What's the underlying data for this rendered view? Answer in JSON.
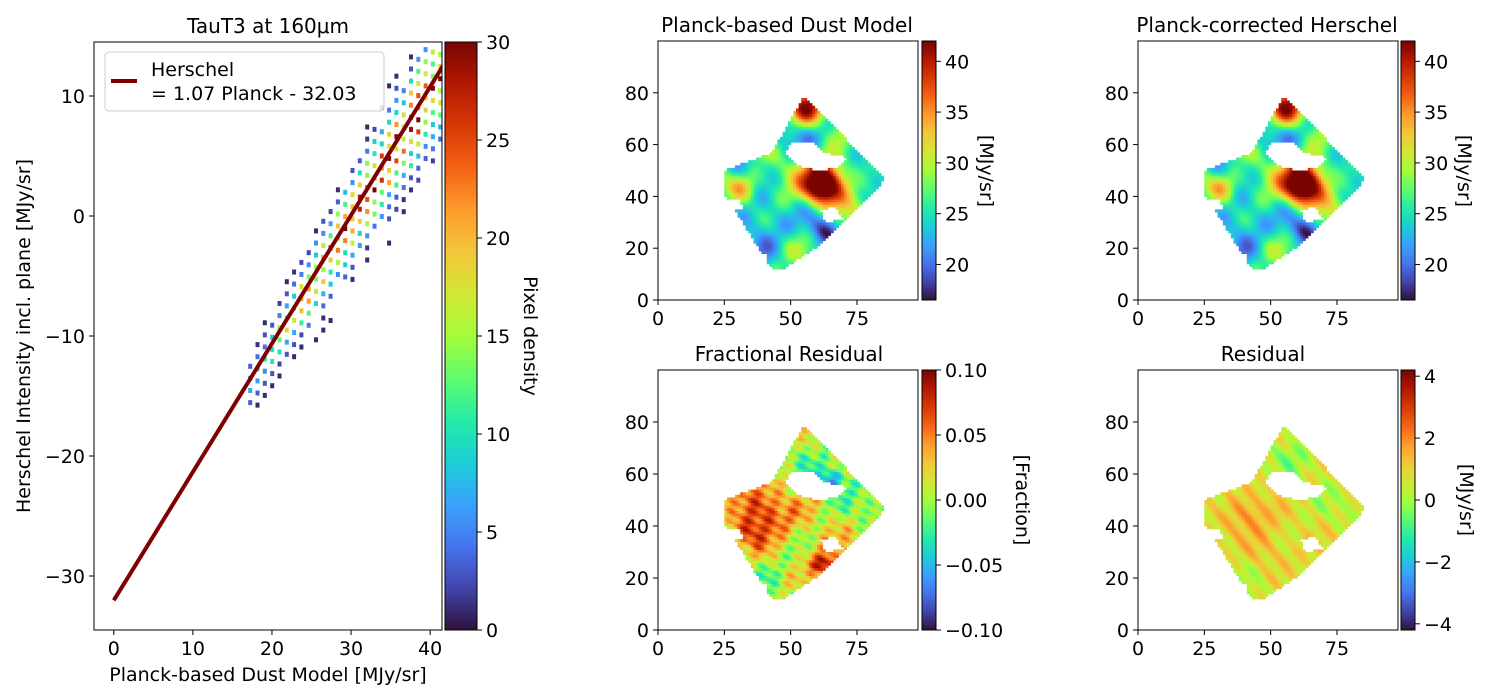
{
  "colors": {
    "turbo_stops": [
      "#30123b",
      "#4145ab",
      "#4675ed",
      "#39a2fc",
      "#1bcfd4",
      "#24eca6",
      "#61fc6c",
      "#a4fc3b",
      "#d1e834",
      "#f3c63a",
      "#fe9b2d",
      "#f36315",
      "#d93806",
      "#b11901",
      "#7a0402"
    ],
    "fit_line": "#7f0000",
    "frame": "#000000"
  },
  "chart_data": [
    {
      "id": "scatter",
      "type": "heatmap",
      "title": "TauT3 at 160μm",
      "xlabel": "Planck-based Dust Model [MJy/sr]",
      "ylabel": "Herschel Intensity incl. plane [MJy/sr]",
      "xlim": [
        -2.5,
        41.5
      ],
      "ylim": [
        -34.5,
        14.5
      ],
      "xticks": [
        0,
        10,
        20,
        30,
        40
      ],
      "yticks": [
        -30,
        -20,
        -10,
        0,
        10
      ],
      "xtick_labels": [
        "0",
        "10",
        "20",
        "30",
        "40"
      ],
      "ytick_labels": [
        "−30",
        "−20",
        "−10",
        "0",
        "10"
      ],
      "density": {
        "x_range": [
          17,
          41.5
        ],
        "slope": 1.07,
        "intercept": -32.03,
        "peak": 30
      },
      "fit": {
        "slope": 1.07,
        "intercept": -32.03,
        "x": [
          0,
          42
        ]
      },
      "legend": {
        "line1": "Herschel",
        "line2": "= 1.07 Planck - 32.03",
        "position": "top-left"
      },
      "colorbar": {
        "label": "Pixel density",
        "range": [
          0,
          30
        ],
        "ticks": [
          0,
          5,
          10,
          15,
          20,
          25,
          30
        ],
        "tick_labels": [
          "0",
          "5",
          "10",
          "15",
          "20",
          "25",
          "30"
        ]
      }
    },
    {
      "id": "map-dust",
      "type": "heatmap",
      "title": "Planck-based Dust Model",
      "xlim": [
        0,
        98
      ],
      "ylim": [
        0,
        100
      ],
      "xticks": [
        0,
        25,
        50,
        75
      ],
      "yticks": [
        0,
        20,
        40,
        60,
        80
      ],
      "xtick_labels": [
        "0",
        "25",
        "50",
        "75"
      ],
      "ytick_labels": [
        "0",
        "20",
        "40",
        "60",
        "80"
      ],
      "colorbar": {
        "label": "[MJy/sr]",
        "range": [
          16.5,
          42
        ],
        "ticks": [
          20,
          25,
          30,
          35,
          40
        ],
        "tick_labels": [
          "20",
          "25",
          "30",
          "35",
          "40"
        ]
      }
    },
    {
      "id": "map-herschel",
      "type": "heatmap",
      "title": "Planck-corrected Herschel",
      "xlim": [
        0,
        98
      ],
      "ylim": [
        0,
        100
      ],
      "xticks": [
        0,
        25,
        50,
        75
      ],
      "yticks": [
        0,
        20,
        40,
        60,
        80
      ],
      "xtick_labels": [
        "0",
        "25",
        "50",
        "75"
      ],
      "ytick_labels": [
        "0",
        "20",
        "40",
        "60",
        "80"
      ],
      "colorbar": {
        "label": "[MJy/sr]",
        "range": [
          16.5,
          42
        ],
        "ticks": [
          20,
          25,
          30,
          35,
          40
        ],
        "tick_labels": [
          "20",
          "25",
          "30",
          "35",
          "40"
        ]
      }
    },
    {
      "id": "map-frac",
      "type": "heatmap",
      "title": "Fractional Residual",
      "xlim": [
        0,
        98
      ],
      "ylim": [
        0,
        100
      ],
      "xticks": [
        0,
        25,
        50,
        75
      ],
      "yticks": [
        0,
        20,
        40,
        60,
        80
      ],
      "xtick_labels": [
        "0",
        "25",
        "50",
        "75"
      ],
      "ytick_labels": [
        "0",
        "20",
        "40",
        "60",
        "80"
      ],
      "colorbar": {
        "label": "[Fraction]",
        "range": [
          -0.1,
          0.1
        ],
        "ticks": [
          -0.1,
          -0.05,
          0,
          0.05,
          0.1
        ],
        "tick_labels": [
          "−0.10",
          "−0.05",
          "0.00",
          "0.05",
          "0.10"
        ]
      }
    },
    {
      "id": "map-resid",
      "type": "heatmap",
      "title": "Residual",
      "xlim": [
        0,
        98
      ],
      "ylim": [
        0,
        100
      ],
      "xticks": [
        0,
        25,
        50,
        75
      ],
      "yticks": [
        0,
        20,
        40,
        60,
        80
      ],
      "xtick_labels": [
        "0",
        "25",
        "50",
        "75"
      ],
      "ytick_labels": [
        "0",
        "20",
        "40",
        "60",
        "80"
      ],
      "colorbar": {
        "label": "[MJy/sr]",
        "range": [
          -4.2,
          4.2
        ],
        "ticks": [
          -4,
          -2,
          0,
          2,
          4
        ],
        "tick_labels": [
          "−4",
          "−2",
          "0",
          "2",
          "4"
        ]
      }
    }
  ]
}
